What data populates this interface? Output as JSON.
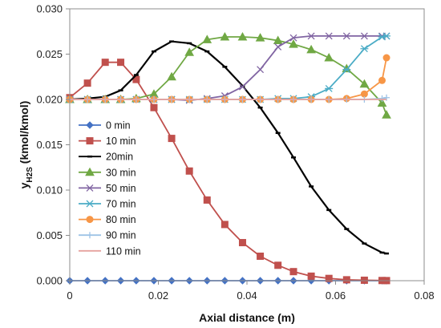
{
  "chart_data": {
    "type": "line",
    "xlabel": "Axial distance (m)",
    "ylabel": "y",
    "ylabel_sub": "H2S",
    "ylabel_unit": " (kmol/kmol)",
    "xlim": [
      0,
      0.08
    ],
    "ylim": [
      0,
      0.03
    ],
    "x_ticks": [
      0,
      0.02,
      0.04,
      0.06,
      0.08
    ],
    "x_tick_labels": [
      "0",
      "0.02",
      "0.04",
      "0.06",
      "0.08"
    ],
    "y_ticks": [
      0,
      0.005,
      0.01,
      0.015,
      0.02,
      0.025,
      0.03
    ],
    "y_tick_labels": [
      "0.000",
      "0.005",
      "0.010",
      "0.015",
      "0.020",
      "0.025",
      "0.030"
    ],
    "grid": false,
    "legend_position": "left",
    "x": [
      0,
      0.004,
      0.008,
      0.0115,
      0.015,
      0.019,
      0.023,
      0.027,
      0.031,
      0.035,
      0.039,
      0.043,
      0.047,
      0.0505,
      0.0545,
      0.0585,
      0.0625,
      0.0665,
      0.0705,
      0.0715
    ],
    "series": [
      {
        "name": "0 min",
        "color": "#4472c4",
        "marker": "diamond",
        "values": [
          0,
          0,
          0,
          0,
          0,
          0,
          0,
          0,
          0,
          0,
          0,
          0,
          0,
          0,
          0,
          0,
          0,
          0,
          0,
          0
        ]
      },
      {
        "name": "10 min",
        "color": "#c0504d",
        "marker": "square",
        "values": [
          0.0202,
          0.0218,
          0.0241,
          0.0241,
          0.0222,
          0.0191,
          0.0157,
          0.0121,
          0.0089,
          0.0062,
          0.0042,
          0.0027,
          0.0017,
          0.001,
          0.0005,
          0.00025,
          0.0001,
          5e-05,
          2e-05,
          1e-05
        ]
      },
      {
        "name": "20min",
        "color": "#000000",
        "marker": "dash",
        "values": [
          0.02,
          0.0201,
          0.0203,
          0.021,
          0.0227,
          0.0253,
          0.0264,
          0.0262,
          0.0253,
          0.0236,
          0.0215,
          0.0191,
          0.0163,
          0.0136,
          0.0104,
          0.0078,
          0.0057,
          0.0041,
          0.0031,
          0.003
        ]
      },
      {
        "name": "30 min",
        "color": "#70a844",
        "marker": "triangle",
        "values": [
          0.02,
          0.02,
          0.02,
          0.02,
          0.0201,
          0.0206,
          0.0225,
          0.0252,
          0.0266,
          0.0269,
          0.0269,
          0.0268,
          0.0265,
          0.0261,
          0.0255,
          0.0246,
          0.0234,
          0.0217,
          0.0196,
          0.0183
        ]
      },
      {
        "name": "50 min",
        "color": "#8064a2",
        "marker": "x",
        "values": [
          0.02,
          0.02,
          0.02,
          0.02,
          0.02,
          0.02,
          0.02,
          0.0199,
          0.0201,
          0.0204,
          0.0214,
          0.0233,
          0.0258,
          0.0268,
          0.027,
          0.027,
          0.027,
          0.027,
          0.027,
          0.027
        ]
      },
      {
        "name": "70 min",
        "color": "#4bacc6",
        "marker": "asterisk",
        "values": [
          0.02,
          0.02,
          0.02,
          0.02,
          0.02,
          0.02,
          0.02,
          0.02,
          0.02,
          0.02,
          0.02,
          0.02,
          0.0201,
          0.0201,
          0.0203,
          0.0212,
          0.0233,
          0.0256,
          0.0269,
          0.027
        ]
      },
      {
        "name": "80 min",
        "color": "#f79646",
        "marker": "circle",
        "values": [
          0.02,
          0.02,
          0.02,
          0.02,
          0.02,
          0.02,
          0.02,
          0.02,
          0.02,
          0.02,
          0.02,
          0.02,
          0.02,
          0.02,
          0.02,
          0.02,
          0.0201,
          0.0206,
          0.0221,
          0.0246
        ]
      },
      {
        "name": "90 min",
        "color": "#9dc3e6",
        "marker": "plus",
        "values": [
          0.02,
          0.02,
          0.02,
          0.02,
          0.02,
          0.02,
          0.02,
          0.02,
          0.02,
          0.02,
          0.02,
          0.02,
          0.02,
          0.02,
          0.02,
          0.02,
          0.02,
          0.02,
          0.0201,
          0.0202
        ]
      },
      {
        "name": "110 min",
        "color": "#e6a29e",
        "marker": "line",
        "values": [
          0.02,
          0.02,
          0.02,
          0.02,
          0.02,
          0.02,
          0.02,
          0.02,
          0.02,
          0.02,
          0.02,
          0.02,
          0.02,
          0.02,
          0.02,
          0.02,
          0.02,
          0.02,
          0.02,
          0.02
        ]
      }
    ]
  }
}
